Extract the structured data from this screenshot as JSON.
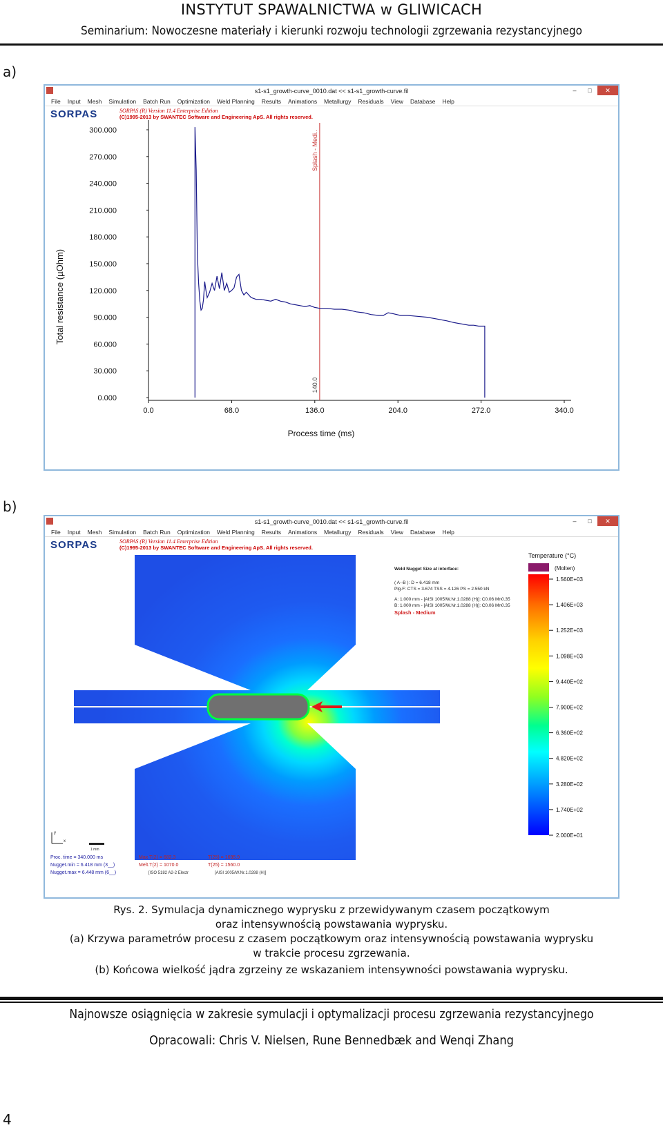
{
  "header": {
    "institute": "INSTYTUT SPAWALNICTWA w GLIWICACH",
    "seminar": "Seminarium: Nowoczesne materiały i kierunki rozwoju technologii zgrzewania rezystancyjnego"
  },
  "figure_a": {
    "label": "a)",
    "window_title": "s1-s1_growth-curve_0010.dat << s1-s1_growth-curve.fil",
    "menu": [
      "File",
      "Input",
      "Mesh",
      "Simulation",
      "Batch Run",
      "Optimization",
      "Weld Planning",
      "Results",
      "Animations",
      "Metallurgy",
      "Residuals",
      "View",
      "Database",
      "Help"
    ],
    "brand": "SORPAS",
    "version_line": "SORPAS (R) Version 11.4  Enterprise Edition",
    "copyright_line": "(C)1995-2013 by SWANTEC Software and Engineering ApS. All rights reserved.",
    "marker_label": "Splash - Medi..",
    "marker_value": "140.0"
  },
  "chart_data": {
    "type": "line",
    "title": "",
    "xlabel": "Process time (ms)",
    "ylabel": "Total resistance (µOhm)",
    "xlim": [
      0,
      340
    ],
    "ylim": [
      0,
      300
    ],
    "x_ticks": [
      0,
      68,
      136,
      204,
      272,
      340
    ],
    "x_tick_labels": [
      "0.0",
      "68.0",
      "136.0",
      "204.0",
      "272.0",
      "340.0"
    ],
    "y_ticks": [
      0,
      30,
      60,
      90,
      120,
      150,
      180,
      210,
      240,
      270,
      300
    ],
    "y_tick_labels": [
      "0.000",
      "30.000",
      "60.000",
      "90.000",
      "120.000",
      "150.000",
      "180.000",
      "210.000",
      "240.000",
      "270.000",
      "300.000"
    ],
    "series": [
      {
        "name": "Total resistance",
        "color": "#1a1a8a",
        "x": [
          38,
          38,
          39,
          40,
          41,
          42,
          43,
          44,
          45,
          46,
          47,
          48,
          50,
          52,
          54,
          56,
          58,
          60,
          62,
          64,
          66,
          68,
          70,
          72,
          74,
          76,
          78,
          80,
          84,
          88,
          92,
          96,
          100,
          104,
          108,
          112,
          116,
          120,
          124,
          128,
          132,
          136,
          140,
          146,
          152,
          158,
          164,
          170,
          176,
          182,
          188,
          192,
          196,
          200,
          206,
          212,
          220,
          228,
          236,
          244,
          250,
          254,
          258,
          262,
          266,
          270,
          275,
          275
        ],
        "y": [
          0,
          310,
          255,
          160,
          128,
          108,
          98,
          100,
          110,
          130,
          120,
          112,
          118,
          128,
          120,
          136,
          122,
          140,
          120,
          128,
          118,
          120,
          123,
          135,
          138,
          120,
          115,
          118,
          112,
          110,
          110,
          109,
          108,
          110,
          108,
          107,
          105,
          104,
          103,
          102,
          103,
          101,
          100,
          100,
          99,
          99,
          98,
          96,
          95,
          93,
          92,
          92,
          95,
          94,
          92,
          92,
          91,
          90,
          88,
          86,
          84,
          83,
          82,
          81,
          81,
          80,
          80,
          0
        ]
      }
    ],
    "annotations": [
      {
        "type": "vline",
        "x": 140,
        "color": "#c83232",
        "text_top": "Splash - Medi..",
        "text_bottom": "140.0"
      }
    ],
    "grid": false,
    "legend": "none"
  },
  "figure_b": {
    "label": "b)",
    "window_title": "s1-s1_growth-curve_0010.dat << s1-s1_growth-curve.fil",
    "menu": [
      "File",
      "Input",
      "Mesh",
      "Simulation",
      "Batch Run",
      "Optimization",
      "Weld Planning",
      "Results",
      "Animations",
      "Metallurgy",
      "Residuals",
      "View",
      "Database",
      "Help"
    ],
    "brand": "SORPAS",
    "version_line": "SORPAS (R) Version 11.4  Enterprise Edition",
    "copyright_line": "(C)1995-2013 by SWANTEC Software and Engineering ApS. All rights reserved.",
    "nugget_info": {
      "title": "Weld Nugget Size at interface:",
      "line1": "( A--B ):  D = 6.418  mm",
      "line2": "Plg.F:  CTS = 3.674  TSS = 4.126  PS = 2.550  kN",
      "line3": "A: 1.000 mm - [AISI 1005/W.Nr.1.0288 (H)]: C0.06 Mn0.35",
      "line4": "B: 1.000 mm - [AISI 1005/W.Nr.1.0288 (H)]: C0.06 Mn0.35",
      "splash": "Splash - Medium"
    },
    "legend_title": "Temperature (°C)",
    "molten_label": "(Molten)",
    "legend_values": [
      "1.560E+03",
      "1.406E+03",
      "1.252E+03",
      "1.098E+03",
      "9.440E+02",
      "7.900E+02",
      "6.360E+02",
      "4.820E+02",
      "3.280E+02",
      "1.740E+02",
      "2.000E+01"
    ],
    "legend_colors": [
      "#ff0000",
      "#ff6000",
      "#ffb400",
      "#ffff00",
      "#b4ff00",
      "#40ff40",
      "#00ffa0",
      "#00ffff",
      "#00b0ff",
      "#0060ff",
      "#0000ff"
    ],
    "axis_y": "y",
    "axis_x": "x",
    "scale_label": "1 mm",
    "status": {
      "proc_time": "Proc. time = 340.000 ms",
      "nugget_min": "Nugget.min = 6.418 mm  (3__)",
      "nugget_max": "Nugget.max = 6.448 mm  (6__)",
      "max_t": "Max T(2) =     682.3",
      "melt_t": "Melt.T(2) =   1070.0",
      "t25a": "T(25) =    1695.9",
      "t25b": "T(25) =    1560.0",
      "iso": "[ISO 5182   A2-2 Electr",
      "aisi": "[AISI 1005/W.Nr.1.0288 (H)]"
    }
  },
  "caption": {
    "line1": "Rys. 2. Symulacja dynamicznego wyprysku z przewidywanym czasem początkowym",
    "line2": "oraz intensywnością powstawania wyprysku.",
    "line3": "(a) Krzywa parametrów procesu z czasem początkowym oraz intensywnością powstawania wyprysku",
    "line4": "w trakcie procesu zgrzewania.",
    "line5": "(b) Końcowa wielkość jądra zgrzeiny ze wskazaniem intensywności powstawania wyprysku."
  },
  "footer": {
    "title": "Najnowsze osiągnięcia w zakresie symulacji i optymalizacji procesu zgrzewania rezystancyjnego",
    "authors": "Opracowali: Chris V. Nielsen, Rune Bennedbæk and Wenqi Zhang",
    "page_number": "4"
  }
}
